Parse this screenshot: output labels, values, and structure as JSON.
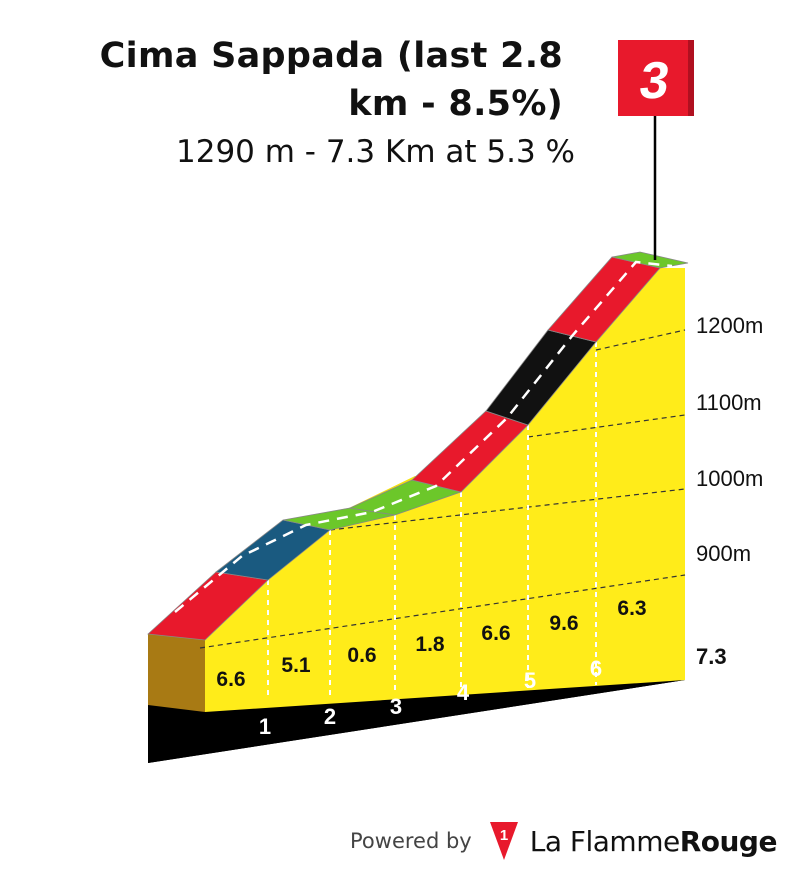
{
  "header": {
    "title_line1": "Cima Sappada (last 2.8",
    "title_line2": "km - 8.5%)",
    "subtitle": "1290 m - 7.3 Km at 5.3 %"
  },
  "category_flag": {
    "label": "3",
    "color": "#e8192c"
  },
  "chart_data": {
    "type": "area",
    "title": "Cima Sappada (last 2.8 km - 8.5%)",
    "subtitle": "1290 m - 7.3 Km at 5.3 %",
    "x_unit": "km",
    "y_unit": "m",
    "km_markers": [
      "1",
      "2",
      "3",
      "4",
      "5",
      "6"
    ],
    "total_distance_label": "7.3",
    "elevation_ticks": [
      "900m",
      "1000m",
      "1100m",
      "1200m"
    ],
    "y_ticks": [
      900,
      1000,
      1100,
      1200
    ],
    "ylim": [
      800,
      1290
    ],
    "summit_elevation": 1290,
    "total_distance": 7.3,
    "segments": [
      {
        "from": 0,
        "to": 1,
        "gradient": "6.6",
        "color": "#e8192c"
      },
      {
        "from": 1,
        "to": 2,
        "gradient": "5.1",
        "color": "#1a5a80"
      },
      {
        "from": 2,
        "to": 3,
        "gradient": "0.6",
        "color": "#6cc72a"
      },
      {
        "from": 3,
        "to": 4,
        "gradient": "1.8",
        "color": "#6cc72a"
      },
      {
        "from": 4,
        "to": 5,
        "gradient": "6.6",
        "color": "#e8192c"
      },
      {
        "from": 5,
        "to": 6,
        "gradient": "9.6",
        "color": "#111111"
      },
      {
        "from": 6,
        "to": 7,
        "gradient": "6.3",
        "color": "#e8192c"
      },
      {
        "from": 7,
        "to": 7.3,
        "gradient": "",
        "color": "#6cc72a"
      }
    ],
    "colors": {
      "profile_fill": "#ffec1a",
      "base": "#000000",
      "start_face": "#a87a14",
      "easy": "#6cc72a",
      "medium": "#1a5a80",
      "hard": "#e8192c",
      "very_hard": "#111111"
    }
  },
  "footer": {
    "powered_by": "Powered by",
    "brand_light": "La Flamme",
    "brand_bold": "Rouge",
    "logo_mark": "1"
  }
}
